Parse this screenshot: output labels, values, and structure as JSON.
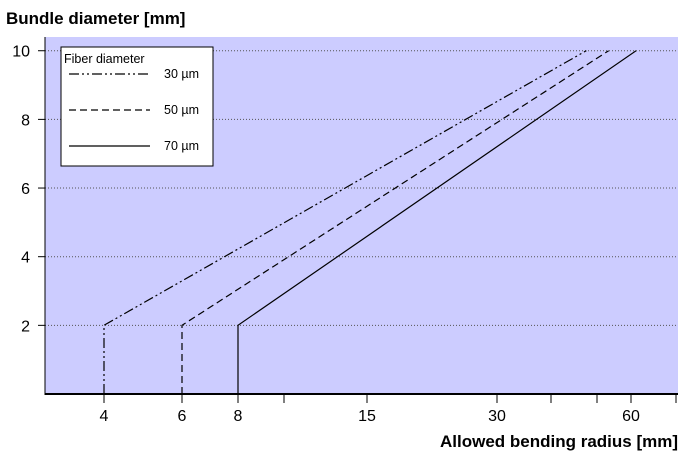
{
  "chart_data": {
    "type": "line",
    "title": "Bundle diameter [mm]",
    "xlabel": "Allowed bending radius [mm]",
    "ylabel": "Bundle diameter [mm]",
    "x_scale": "nonlinear",
    "x_tick_labels": [
      "4",
      "6",
      "8",
      "15",
      "30",
      "60"
    ],
    "y_tick_labels": [
      "2",
      "4",
      "6",
      "8",
      "10"
    ],
    "ylim": [
      0,
      10.4
    ],
    "grid": "horizontal dotted",
    "legend": {
      "title": "Fiber diameter",
      "position": "top-left"
    },
    "background_color": "#ccccff",
    "series": [
      {
        "name": "30 µm",
        "style": "dash-dot-dot",
        "points": [
          [
            4,
            0
          ],
          [
            4,
            2
          ],
          [
            50,
            10
          ]
        ]
      },
      {
        "name": "50 µm",
        "style": "dashed",
        "points": [
          [
            6,
            0
          ],
          [
            6,
            2
          ],
          [
            55,
            10
          ]
        ]
      },
      {
        "name": "70 µm",
        "style": "solid",
        "points": [
          [
            8,
            0
          ],
          [
            8,
            2
          ],
          [
            63,
            10
          ]
        ]
      }
    ]
  }
}
